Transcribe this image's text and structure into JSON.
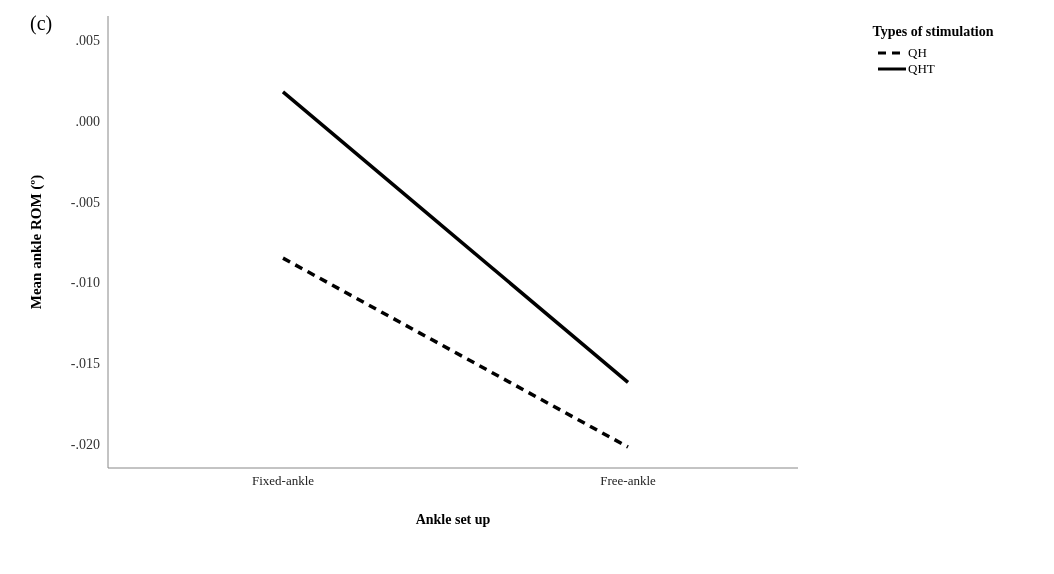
{
  "chart_data": {
    "type": "line",
    "title": "(c)",
    "xlabel": "Ankle set up",
    "ylabel": "Mean ankle ROM (º)",
    "legend_title": "Types of stimulation",
    "legend": "top right",
    "grid": false,
    "marker": "none",
    "categories": [
      "Fixed-ankle",
      "Free-ankle"
    ],
    "ylim": [
      -0.0215,
      0.0065
    ],
    "yticks": [
      {
        "value": 0.005,
        "label": ".005"
      },
      {
        "value": 0,
        "label": ".000"
      },
      {
        "value": -0.005,
        "label": "-.005"
      },
      {
        "value": -0.01,
        "label": "-.010"
      },
      {
        "value": -0.015,
        "label": "-.015"
      },
      {
        "value": -0.02,
        "label": "-.020"
      }
    ],
    "series": [
      {
        "name": "QH",
        "color": "#000000",
        "line_style": "dashed",
        "values": [
          -0.0085,
          -0.0202
        ]
      },
      {
        "name": "QHT",
        "color": "#000000",
        "line_style": "solid",
        "values": [
          0.0018,
          -0.0162
        ]
      }
    ]
  }
}
